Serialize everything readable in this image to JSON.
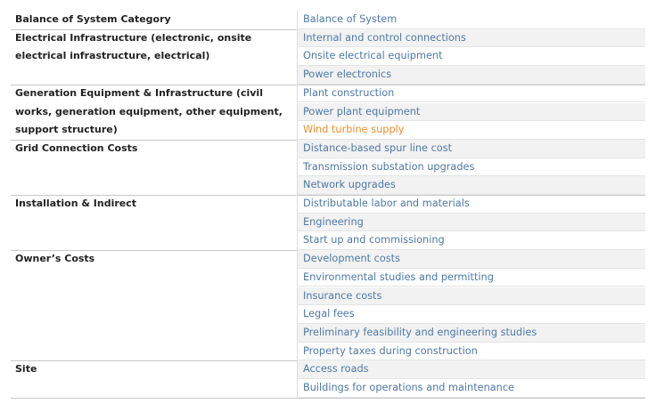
{
  "table": {
    "header": {
      "category": "Balance of System Category",
      "item": "Balance of System"
    },
    "groups": [
      {
        "category": "Electrical Infrastructure (electronic, onsite electrical infrastructure, electrical)",
        "items": [
          "Internal and control connections",
          "Onsite electrical equipment",
          "Power electronics"
        ]
      },
      {
        "category": "Generation Equipment & Infrastructure (civil works, generation equipment, other equipment, support structure)",
        "items": [
          "Plant construction",
          "Power plant equipment",
          {
            "text": "Wind turbine supply",
            "color": "#f28e2b"
          }
        ]
      },
      {
        "category": "Grid Connection Costs",
        "items": [
          "Distance-based spur line cost",
          "Transmission substation upgrades",
          "Network upgrades"
        ]
      },
      {
        "category": "Installation & Indirect",
        "items": [
          "Distributable labor and materials",
          "Engineering",
          "Start up and commissioning"
        ]
      },
      {
        "category": "Owner’s Costs",
        "items": [
          "Development costs",
          "Environmental studies and permitting",
          "Insurance costs",
          "Legal fees",
          "Preliminary feasibility and engineering studies",
          "Property taxes during construction"
        ]
      },
      {
        "category": "Site",
        "items": [
          "Access roads",
          "Buildings for operations and maintenance"
        ]
      }
    ]
  }
}
